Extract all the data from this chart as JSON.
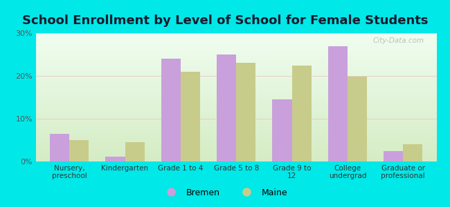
{
  "title": "School Enrollment by Level of School for Female Students",
  "categories": [
    "Nursery,\npreschool",
    "Kindergarten",
    "Grade 1 to 4",
    "Grade 5 to 8",
    "Grade 9 to\n12",
    "College\nundergrad",
    "Graduate or\nprofessional"
  ],
  "bremen": [
    6.5,
    1.2,
    24.0,
    25.0,
    14.5,
    27.0,
    2.5
  ],
  "maine": [
    5.0,
    4.5,
    21.0,
    23.0,
    22.5,
    19.8,
    4.0
  ],
  "bremen_color": "#c9a0dc",
  "maine_color": "#c8cc8a",
  "background_outer": "#00e8e8",
  "background_inner_light": "#f0fdf0",
  "background_inner_dark": "#d4ecc4",
  "ylim": [
    0,
    30
  ],
  "yticks": [
    0,
    10,
    20,
    30
  ],
  "bar_width": 0.35,
  "title_fontsize": 13,
  "legend_labels": [
    "Bremen",
    "Maine"
  ],
  "watermark": "City-Data.com"
}
